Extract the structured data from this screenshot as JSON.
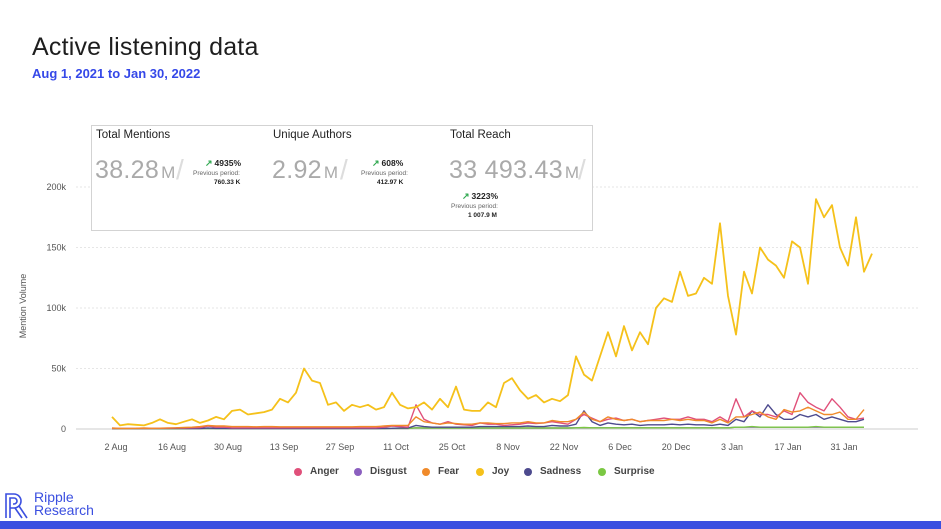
{
  "header": {
    "title": "Active listening data",
    "subtitle": "Aug 1, 2021 to Jan 30, 2022"
  },
  "kpis": [
    {
      "label": "Total Mentions",
      "value": "38.28",
      "unit": "M",
      "change": "4935%",
      "prev_label": "Previous period:",
      "prev_value": "760.33 K"
    },
    {
      "label": "Unique Authors",
      "value": "2.92",
      "unit": "M",
      "change": "608%",
      "prev_label": "Previous period:",
      "prev_value": "412.97 K"
    },
    {
      "label": "Total Reach",
      "value": "33 493.43",
      "unit": "M",
      "change": "3223%",
      "prev_label": "Previous period:",
      "prev_value": "1 007.9 M"
    }
  ],
  "logo": {
    "line1": "Ripple",
    "line2": "Research",
    "icon": "ripple-logo-icon"
  },
  "colors": {
    "accent": "#3b4fe0",
    "subtitle": "#3548e8"
  },
  "chart_data": {
    "type": "line",
    "ylabel": "Mention Volume",
    "xlabel": "",
    "ylim": [
      0,
      200000
    ],
    "yticks": [
      0,
      50000,
      100000,
      150000,
      200000
    ],
    "ytick_labels": [
      "0",
      "50k",
      "100k",
      "150k",
      "200k"
    ],
    "xtick_labels": [
      "2 Aug",
      "16 Aug",
      "30 Aug",
      "13 Sep",
      "27 Sep",
      "11 Oct",
      "25 Oct",
      "8 Nov",
      "22 Nov",
      "6 Dec",
      "20 Dec",
      "3 Jan",
      "17 Jan",
      "31 Jan"
    ],
    "grid": true,
    "legend_position": "bottom",
    "x_start": "2021-07-31",
    "x_step_days": 2,
    "series": [
      {
        "name": "Anger",
        "color": "#e0507a",
        "values": [
          500,
          500,
          500,
          500,
          600,
          500,
          600,
          700,
          800,
          800,
          1000,
          1200,
          2500,
          1500,
          1500,
          1000,
          1000,
          1000,
          1000,
          1000,
          1000,
          1000,
          1000,
          1000,
          1000,
          1000,
          1000,
          1000,
          1000,
          1000,
          1000,
          1000,
          1000,
          1000,
          1500,
          2500,
          2000,
          1500,
          20000,
          8000,
          5000,
          4000,
          6000,
          4000,
          3500,
          3000,
          5000,
          4000,
          4000,
          3000,
          3500,
          4000,
          5000,
          4500,
          5000,
          6000,
          5000,
          4000,
          8000,
          12000,
          9000,
          6000,
          8000,
          9000,
          7000,
          8000,
          6000,
          7000,
          8000,
          9000,
          8000,
          8000,
          10000,
          8000,
          8000,
          6000,
          10000,
          6000,
          25000,
          10000,
          15000,
          12000,
          12000,
          10000,
          15000,
          12000,
          30000,
          22000,
          18000,
          15000,
          25000,
          18000,
          10000,
          8000,
          9000
        ]
      },
      {
        "name": "Disgust",
        "color": "#8b5fbf",
        "values": [
          200,
          200,
          200,
          200,
          200,
          200,
          200,
          200,
          200,
          200,
          300,
          300,
          300,
          300,
          300,
          300,
          300,
          300,
          300,
          300,
          300,
          300,
          300,
          300,
          300,
          300,
          300,
          300,
          300,
          300,
          300,
          300,
          300,
          300,
          300,
          500,
          500,
          500,
          1000,
          800,
          800,
          800,
          800,
          800,
          800,
          800,
          800,
          800,
          800,
          800,
          800,
          800,
          800,
          800,
          800,
          800,
          800,
          800,
          1000,
          1000,
          1000,
          1000,
          1000,
          1000,
          1000,
          1000,
          1000,
          1000,
          1000,
          1000,
          1000,
          1000,
          1000,
          1000,
          1000,
          1000,
          1000,
          1000,
          1500,
          1500,
          1500,
          1500,
          1500,
          1500,
          1500,
          1500,
          1500,
          1500,
          1500,
          1500,
          1500,
          1500,
          1500,
          1500,
          1500
        ]
      },
      {
        "name": "Fear",
        "color": "#f08a2a",
        "values": [
          800,
          500,
          500,
          600,
          800,
          600,
          700,
          900,
          1000,
          1200,
          1500,
          2000,
          3000,
          2500,
          2500,
          2000,
          2000,
          2000,
          1800,
          2000,
          2000,
          1800,
          1800,
          1800,
          1800,
          1800,
          1800,
          1800,
          1800,
          1800,
          1800,
          2000,
          2000,
          2000,
          2500,
          3000,
          3000,
          3000,
          10000,
          6000,
          5000,
          4000,
          5000,
          4500,
          4000,
          4000,
          5000,
          5000,
          4500,
          4500,
          5000,
          5000,
          6000,
          5000,
          5000,
          7000,
          6000,
          6000,
          8000,
          14000,
          8000,
          6000,
          10000,
          8000,
          7000,
          8000,
          6000,
          7000,
          7000,
          7000,
          8000,
          7000,
          8000,
          7000,
          7000,
          5000,
          8000,
          5000,
          10000,
          10000,
          12000,
          14000,
          10000,
          8000,
          16000,
          14000,
          15000,
          18000,
          15000,
          12000,
          12000,
          14000,
          8000,
          8000,
          16000
        ]
      },
      {
        "name": "Joy",
        "color": "#f5c11a",
        "values": [
          10000,
          3000,
          4000,
          3500,
          3000,
          5000,
          8000,
          5000,
          4000,
          6000,
          8000,
          5000,
          7000,
          10000,
          8000,
          15000,
          16000,
          12000,
          13000,
          14000,
          16000,
          25000,
          22000,
          30000,
          50000,
          40000,
          38000,
          20000,
          22000,
          15000,
          20000,
          18000,
          20000,
          16000,
          18000,
          30000,
          20000,
          17000,
          18000,
          22000,
          16000,
          25000,
          18000,
          35000,
          16000,
          15000,
          15000,
          22000,
          18000,
          38000,
          42000,
          32000,
          25000,
          28000,
          22000,
          25000,
          23000,
          28000,
          60000,
          45000,
          40000,
          60000,
          80000,
          60000,
          85000,
          65000,
          80000,
          70000,
          100000,
          108000,
          105000,
          130000,
          110000,
          112000,
          125000,
          120000,
          170000,
          110000,
          78000,
          130000,
          112000,
          150000,
          140000,
          135000,
          125000,
          155000,
          150000,
          120000,
          190000,
          175000,
          185000,
          150000,
          135000,
          175000,
          130000,
          145000
        ]
      },
      {
        "name": "Sadness",
        "color": "#4d4a8e",
        "values": [
          300,
          300,
          300,
          300,
          300,
          300,
          300,
          300,
          300,
          300,
          400,
          400,
          800,
          500,
          500,
          400,
          400,
          400,
          400,
          400,
          400,
          400,
          400,
          400,
          400,
          400,
          400,
          400,
          400,
          400,
          400,
          400,
          400,
          400,
          500,
          600,
          800,
          800,
          3000,
          2000,
          1500,
          1500,
          1500,
          1500,
          1500,
          1500,
          2000,
          2000,
          2000,
          2000,
          2000,
          2000,
          2500,
          2000,
          2000,
          3000,
          2500,
          2500,
          4000,
          15000,
          6000,
          3000,
          5000,
          4000,
          3500,
          4000,
          3000,
          3500,
          3500,
          3500,
          4000,
          3500,
          4000,
          3500,
          3500,
          3000,
          4000,
          3000,
          8000,
          6000,
          15000,
          10000,
          20000,
          12000,
          8000,
          8000,
          12000,
          10000,
          12000,
          8000,
          10000,
          8000,
          6000,
          6000,
          8000
        ]
      },
      {
        "name": "Surprise",
        "color": "#7bc843",
        "values": [
          200,
          200,
          200,
          200,
          200,
          200,
          200,
          200,
          200,
          200,
          300,
          300,
          300,
          300,
          300,
          300,
          300,
          300,
          300,
          300,
          300,
          300,
          300,
          300,
          300,
          300,
          300,
          300,
          300,
          300,
          300,
          300,
          300,
          300,
          300,
          500,
          500,
          500,
          1000,
          800,
          800,
          800,
          800,
          800,
          800,
          800,
          800,
          800,
          800,
          800,
          800,
          800,
          800,
          800,
          800,
          800,
          800,
          800,
          1000,
          1200,
          1000,
          1000,
          1000,
          1000,
          1000,
          1000,
          1000,
          1000,
          1000,
          1000,
          1000,
          1000,
          1000,
          1000,
          1000,
          1000,
          1000,
          1000,
          1500,
          1500,
          2000,
          1500,
          1500,
          1500,
          1500,
          1500,
          1500,
          1500,
          2000,
          1500,
          1500,
          1500,
          1500,
          1500,
          1500
        ]
      }
    ]
  }
}
